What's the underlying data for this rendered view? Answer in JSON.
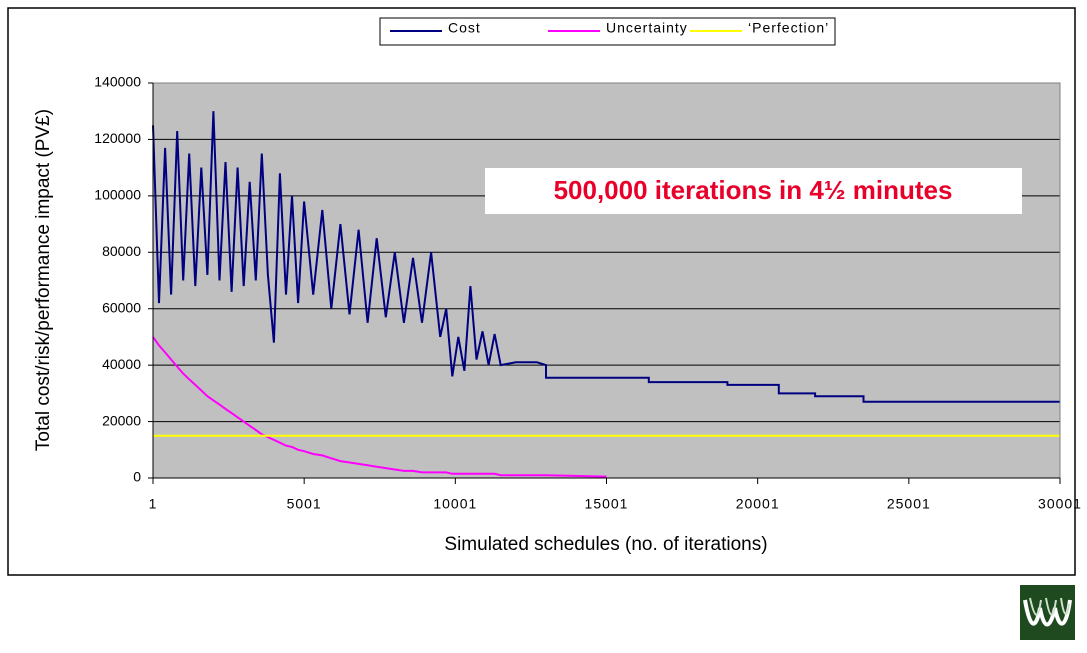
{
  "chart_data": {
    "type": "line",
    "annotation": "500,000 iterations in 4½ minutes",
    "x_label": "Simulated schedules (no. of iterations)",
    "y_label": "Total cost/risk/performance impact (PV£)",
    "xlim": [
      1,
      30001
    ],
    "xticks": [
      1,
      5001,
      10001,
      15001,
      20001,
      25001,
      30001
    ],
    "ylim": [
      0,
      140000
    ],
    "yticks": [
      0,
      20000,
      40000,
      60000,
      80000,
      100000,
      120000,
      140000
    ],
    "grid": true,
    "legend": "top",
    "x": [
      1,
      200,
      400,
      600,
      800,
      1000,
      1200,
      1400,
      1600,
      1800,
      2000,
      2200,
      2400,
      2600,
      2800,
      3000,
      3200,
      3400,
      3600,
      3800,
      4000,
      4200,
      4400,
      4600,
      4800,
      5000,
      5300,
      5600,
      5900,
      6200,
      6500,
      6800,
      7100,
      7400,
      7700,
      8000,
      8300,
      8600,
      8900,
      9200,
      9500,
      9700,
      9900,
      10100,
      10300,
      10500,
      10700,
      10900,
      11100,
      11300,
      11500,
      12000,
      12700,
      13000,
      13001,
      15001,
      16400,
      16401,
      19000,
      19001,
      20700,
      20701,
      21900,
      21901,
      23500,
      23501,
      30001
    ],
    "series": [
      {
        "name": "Cost",
        "color": "#000080",
        "values": [
          125000,
          62000,
          117000,
          65000,
          123000,
          70000,
          115000,
          68000,
          110000,
          72000,
          130000,
          70000,
          112000,
          66000,
          110000,
          68000,
          105000,
          70000,
          115000,
          72000,
          48000,
          108000,
          65000,
          100000,
          62000,
          98000,
          65000,
          95000,
          60000,
          90000,
          58000,
          88000,
          55000,
          85000,
          57000,
          80000,
          55000,
          78000,
          55000,
          80000,
          50000,
          60000,
          36000,
          50000,
          38000,
          68000,
          42000,
          52000,
          40000,
          51000,
          40000,
          41000,
          41000,
          40000,
          35500,
          35500,
          35500,
          34000,
          34000,
          33000,
          33000,
          30000,
          30000,
          29000,
          29000,
          27000,
          27000
        ]
      },
      {
        "name": "Uncertainty",
        "color": "#ff00ff",
        "values": [
          50000,
          47000,
          44500,
          42000,
          39500,
          37000,
          35000,
          33000,
          31000,
          29000,
          27500,
          26000,
          24500,
          23000,
          21500,
          20000,
          18500,
          17000,
          15500,
          14500,
          13500,
          12500,
          11500,
          11000,
          10000,
          9500,
          8500,
          8000,
          7000,
          6000,
          5500,
          5000,
          4500,
          4000,
          3500,
          3000,
          2500,
          2500,
          2000,
          2000,
          2000,
          2000,
          1500,
          1500,
          1500,
          1500,
          1500,
          1500,
          1500,
          1500,
          1000,
          1000,
          1000,
          1000,
          1000,
          500,
          null,
          null,
          null,
          null,
          null,
          null,
          null,
          null,
          null,
          null,
          null
        ]
      },
      {
        "name": "‘Perfection’",
        "color": "#ffff00",
        "values": [
          15000,
          15000,
          15000,
          15000,
          15000,
          15000,
          15000,
          15000,
          15000,
          15000,
          15000,
          15000,
          15000,
          15000,
          15000,
          15000,
          15000,
          15000,
          15000,
          15000,
          15000,
          15000,
          15000,
          15000,
          15000,
          15000,
          15000,
          15000,
          15000,
          15000,
          15000,
          15000,
          15000,
          15000,
          15000,
          15000,
          15000,
          15000,
          15000,
          15000,
          15000,
          15000,
          15000,
          15000,
          15000,
          15000,
          15000,
          15000,
          15000,
          15000,
          15000,
          15000,
          15000,
          15000,
          15000,
          15000,
          15000,
          15000,
          15000,
          15000,
          15000,
          15000,
          15000,
          15000,
          15000,
          15000,
          15000
        ]
      }
    ]
  }
}
